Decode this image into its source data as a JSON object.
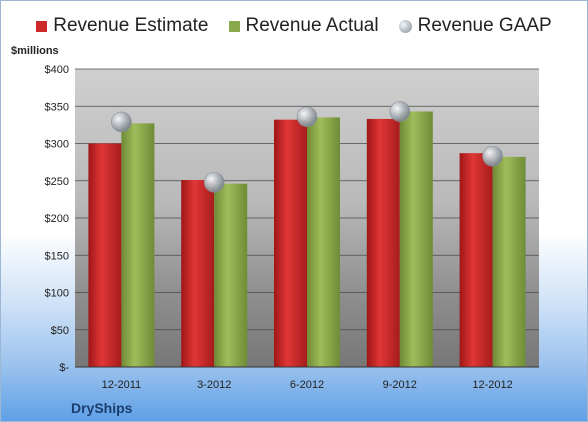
{
  "chart_data": {
    "type": "bar",
    "unit_label": "$millions",
    "categories": [
      "12-2011",
      "3-2012",
      "6-2012",
      "9-2012",
      "12-2012"
    ],
    "series": [
      {
        "name": "Revenue Estimate",
        "type": "bar",
        "color": "#cc2a2a",
        "values": [
          300,
          251,
          332,
          333,
          287
        ]
      },
      {
        "name": "Revenue Actual",
        "type": "bar",
        "color": "#8aa94a",
        "values": [
          327,
          246,
          335,
          343,
          282
        ]
      },
      {
        "name": "Revenue GAAP",
        "type": "marker",
        "color": "#b7bcc2",
        "values": [
          329,
          248,
          336,
          343,
          283
        ]
      }
    ],
    "ylim": [
      0,
      400
    ],
    "y_ticks": [
      0,
      50,
      100,
      150,
      200,
      250,
      300,
      350,
      400
    ],
    "y_tick_labels": [
      "$-",
      "$50",
      "$100",
      "$150",
      "$200",
      "$250",
      "$300",
      "$350",
      "$400"
    ],
    "grid": true,
    "legend": "top"
  },
  "footer": {
    "brand": "DryShips"
  }
}
